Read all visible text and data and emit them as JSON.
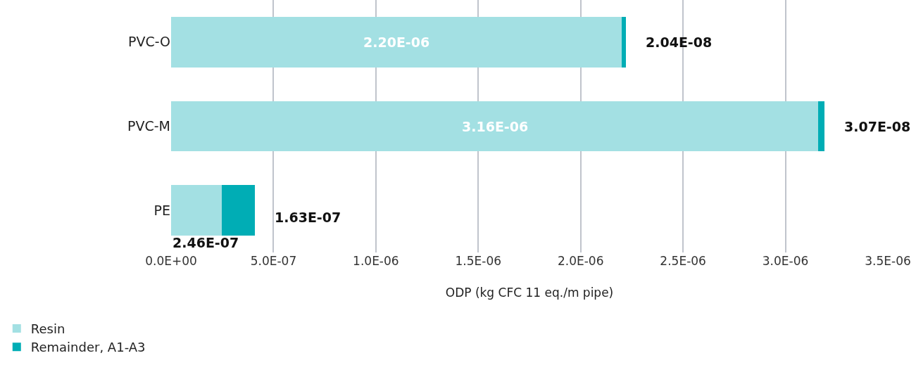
{
  "chart_data": {
    "type": "bar",
    "orientation": "horizontal",
    "stacked": true,
    "xlabel": "ODP (kg CFC 11 eq./m pipe)",
    "categories": [
      "PVC-O",
      "PVC-M",
      "PE"
    ],
    "series": [
      {
        "name": "Resin",
        "color": "#a3e0e3",
        "values": [
          2.2e-06,
          3.16e-06,
          2.46e-07
        ],
        "value_labels": [
          "2.20E-06",
          "3.16E-06",
          "2.46E-07"
        ]
      },
      {
        "name": "Remainder, A1-A3",
        "color": "#00adb5",
        "values": [
          2.04e-08,
          3.07e-08,
          1.63e-07
        ],
        "value_labels": [
          "2.04E-08",
          "3.07E-08",
          "1.63E-07"
        ]
      }
    ],
    "xlim": [
      0,
      3.5e-06
    ],
    "xticks": [
      {
        "value": 0,
        "label": "0.0E+00"
      },
      {
        "value": 5e-07,
        "label": "5.0E-07"
      },
      {
        "value": 1e-06,
        "label": "1.0E-06"
      },
      {
        "value": 1.5e-06,
        "label": "1.5E-06"
      },
      {
        "value": 2e-06,
        "label": "2.0E-06"
      },
      {
        "value": 2.5e-06,
        "label": "2.5E-06"
      },
      {
        "value": 3e-06,
        "label": "3.0E-06"
      },
      {
        "value": 3.5e-06,
        "label": "3.5E-06"
      }
    ],
    "grid": "x",
    "legend": "bottom left"
  }
}
